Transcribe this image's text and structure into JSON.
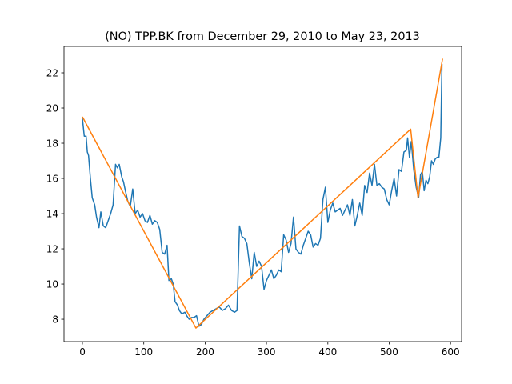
{
  "chart_data": {
    "type": "line",
    "title": "(NO) TPP.BK from December 29, 2010 to May 23, 2013",
    "xlim": [
      -30,
      618
    ],
    "ylim": [
      6.73,
      23.5
    ],
    "xticks": [
      0,
      100,
      200,
      300,
      400,
      500,
      600
    ],
    "yticks": [
      8,
      10,
      12,
      14,
      16,
      18,
      20,
      22
    ],
    "grid": false,
    "series": [
      {
        "color": "#1f77b4",
        "x": [
          0,
          3,
          6,
          8,
          10,
          13,
          16,
          20,
          23,
          27,
          30,
          34,
          38,
          42,
          46,
          50,
          54,
          57,
          60,
          64,
          67,
          70,
          74,
          78,
          82,
          86,
          90,
          94,
          98,
          102,
          106,
          110,
          114,
          118,
          122,
          126,
          130,
          134,
          138,
          141,
          145,
          148,
          151,
          155,
          158,
          162,
          167,
          170,
          174,
          178,
          182,
          186,
          190,
          194,
          198,
          203,
          208,
          213,
          218,
          223,
          228,
          233,
          238,
          243,
          248,
          252,
          256,
          260,
          264,
          268,
          272,
          276,
          280,
          284,
          288,
          292,
          296,
          300,
          304,
          308,
          312,
          316,
          320,
          324,
          328,
          332,
          336,
          340,
          344,
          348,
          352,
          356,
          360,
          364,
          368,
          372,
          376,
          380,
          384,
          388,
          392,
          396,
          400,
          404,
          408,
          412,
          416,
          420,
          424,
          428,
          432,
          436,
          440,
          444,
          448,
          452,
          456,
          460,
          464,
          468,
          472,
          476,
          480,
          484,
          488,
          492,
          496,
          500,
          504,
          508,
          512,
          516,
          520,
          524,
          528,
          530,
          533,
          536,
          540,
          544,
          548,
          551,
          554,
          557,
          560,
          563,
          566,
          569,
          572,
          575,
          578,
          581,
          584,
          586
        ],
        "values": [
          19.4,
          18.4,
          18.4,
          17.5,
          17.3,
          16.0,
          14.9,
          14.5,
          13.8,
          13.2,
          14.1,
          13.3,
          13.2,
          13.6,
          14.0,
          14.5,
          16.8,
          16.6,
          16.8,
          16.1,
          15.8,
          15.3,
          14.7,
          14.4,
          15.4,
          14.0,
          14.2,
          13.8,
          14.0,
          13.6,
          13.5,
          13.9,
          13.4,
          13.6,
          13.5,
          13.1,
          11.8,
          11.7,
          12.2,
          10.2,
          10.3,
          10.0,
          9.0,
          8.8,
          8.5,
          8.3,
          8.4,
          8.2,
          8.0,
          8.1,
          8.1,
          8.2,
          7.6,
          7.7,
          8.0,
          8.2,
          8.4,
          8.5,
          8.6,
          8.7,
          8.5,
          8.6,
          8.8,
          8.5,
          8.4,
          8.5,
          13.3,
          12.7,
          12.6,
          12.3,
          11.2,
          10.3,
          11.8,
          11.0,
          11.3,
          11.0,
          9.7,
          10.2,
          10.5,
          10.8,
          10.3,
          10.5,
          10.8,
          10.7,
          12.8,
          12.5,
          11.8,
          12.3,
          13.8,
          12.0,
          11.8,
          11.7,
          12.2,
          12.6,
          13.0,
          12.8,
          12.1,
          12.3,
          12.2,
          12.6,
          14.8,
          15.5,
          13.5,
          14.2,
          14.6,
          14.1,
          14.2,
          14.3,
          13.9,
          14.2,
          14.5,
          13.9,
          14.8,
          13.3,
          13.9,
          14.6,
          13.9,
          15.6,
          15.2,
          16.3,
          15.6,
          16.8,
          15.6,
          15.7,
          15.5,
          15.4,
          14.8,
          14.5,
          15.3,
          16.0,
          15.0,
          16.5,
          16.4,
          17.5,
          17.6,
          18.3,
          17.2,
          18.1,
          16.5,
          15.5,
          14.9,
          16.2,
          16.4,
          15.3,
          15.9,
          15.7,
          16.1,
          17.0,
          16.8,
          17.1,
          17.2,
          17.2,
          18.3,
          22.5
        ]
      },
      {
        "color": "#ff7f0e",
        "x": [
          0,
          185,
          535,
          547,
          587
        ],
        "values": [
          19.5,
          7.5,
          18.8,
          14.9,
          22.8
        ]
      }
    ]
  }
}
